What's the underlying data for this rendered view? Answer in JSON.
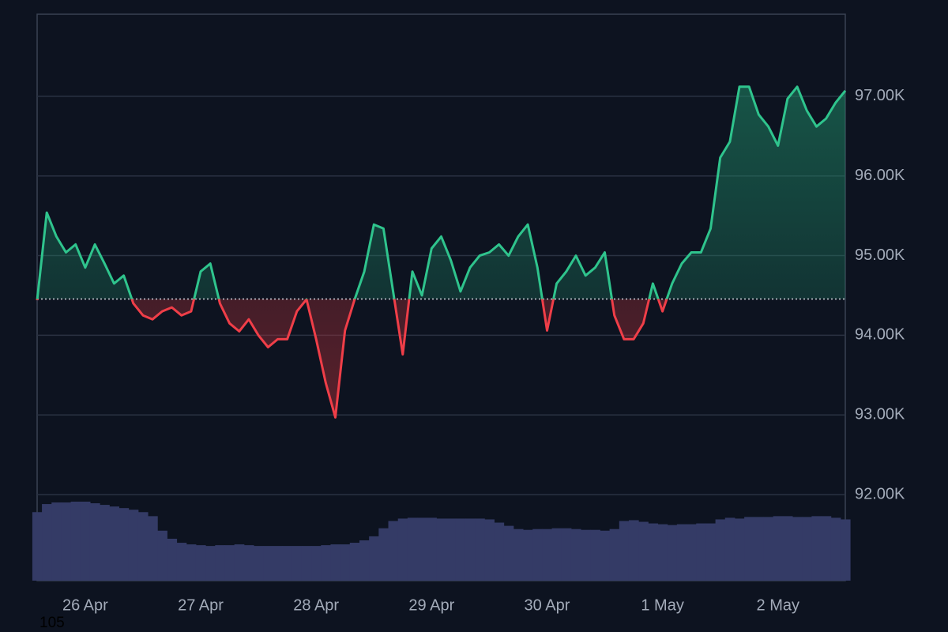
{
  "chart_data": {
    "type": "baseline",
    "baseline": 94455,
    "up_color": "#2fc48d",
    "down_color": "#ef3e48",
    "volume_color": "#343b66",
    "grid": true,
    "ylim": [
      90920,
      98030
    ],
    "yticks": [
      {
        "value": 92000,
        "label": "92.00K"
      },
      {
        "value": 93000,
        "label": "93.00K"
      },
      {
        "value": 94000,
        "label": "94.00K"
      },
      {
        "value": 95000,
        "label": "95.00K"
      },
      {
        "value": 96000,
        "label": "96.00K"
      },
      {
        "value": 97000,
        "label": "97.00K"
      }
    ],
    "xlim": [
      0,
      84
    ],
    "xticks": [
      {
        "value": 5,
        "label": "26 Apr"
      },
      {
        "value": 17,
        "label": "27 Apr"
      },
      {
        "value": 29,
        "label": "28 Apr"
      },
      {
        "value": 41,
        "label": "29 Apr"
      },
      {
        "value": 53,
        "label": "30 Apr"
      },
      {
        "value": 65,
        "label": "1 May"
      },
      {
        "value": 77,
        "label": "2 May"
      }
    ],
    "values": [
      94440,
      95540,
      95240,
      95040,
      95140,
      94850,
      95140,
      94900,
      94650,
      94750,
      94400,
      94250,
      94200,
      94300,
      94350,
      94250,
      94300,
      94800,
      94900,
      94400,
      94150,
      94050,
      94200,
      94000,
      93850,
      93950,
      93950,
      94300,
      94450,
      93950,
      93400,
      92970,
      94060,
      94450,
      94800,
      95390,
      95340,
      94550,
      93760,
      94800,
      94500,
      95090,
      95240,
      94940,
      94550,
      94850,
      95000,
      95040,
      95140,
      95000,
      95240,
      95390,
      94850,
      94060,
      94650,
      94800,
      95000,
      94750,
      94850,
      95040,
      94250,
      93950,
      93950,
      94150,
      94650,
      94300,
      94650,
      94900,
      95040,
      95040,
      95340,
      96230,
      96430,
      97120,
      97120,
      96770,
      96620,
      96380,
      96970,
      97120,
      96820,
      96620,
      96720,
      96920,
      97070
    ],
    "volume": [
      85,
      95,
      97,
      97,
      98,
      98,
      96,
      94,
      92,
      90,
      88,
      85,
      80,
      62,
      52,
      47,
      45,
      44,
      43,
      44,
      44,
      45,
      44,
      43,
      43,
      43,
      43,
      43,
      43,
      43,
      44,
      45,
      45,
      47,
      50,
      55,
      65,
      74,
      77,
      78,
      78,
      78,
      77,
      77,
      77,
      77,
      77,
      76,
      72,
      68,
      64,
      63,
      64,
      64,
      65,
      65,
      64,
      63,
      63,
      62,
      64,
      74,
      75,
      73,
      71,
      70,
      69,
      70,
      70,
      71,
      71,
      76,
      78,
      77,
      79,
      79,
      79,
      80,
      80,
      79,
      79,
      80,
      80,
      78,
      76
    ],
    "footer_text": "105"
  }
}
